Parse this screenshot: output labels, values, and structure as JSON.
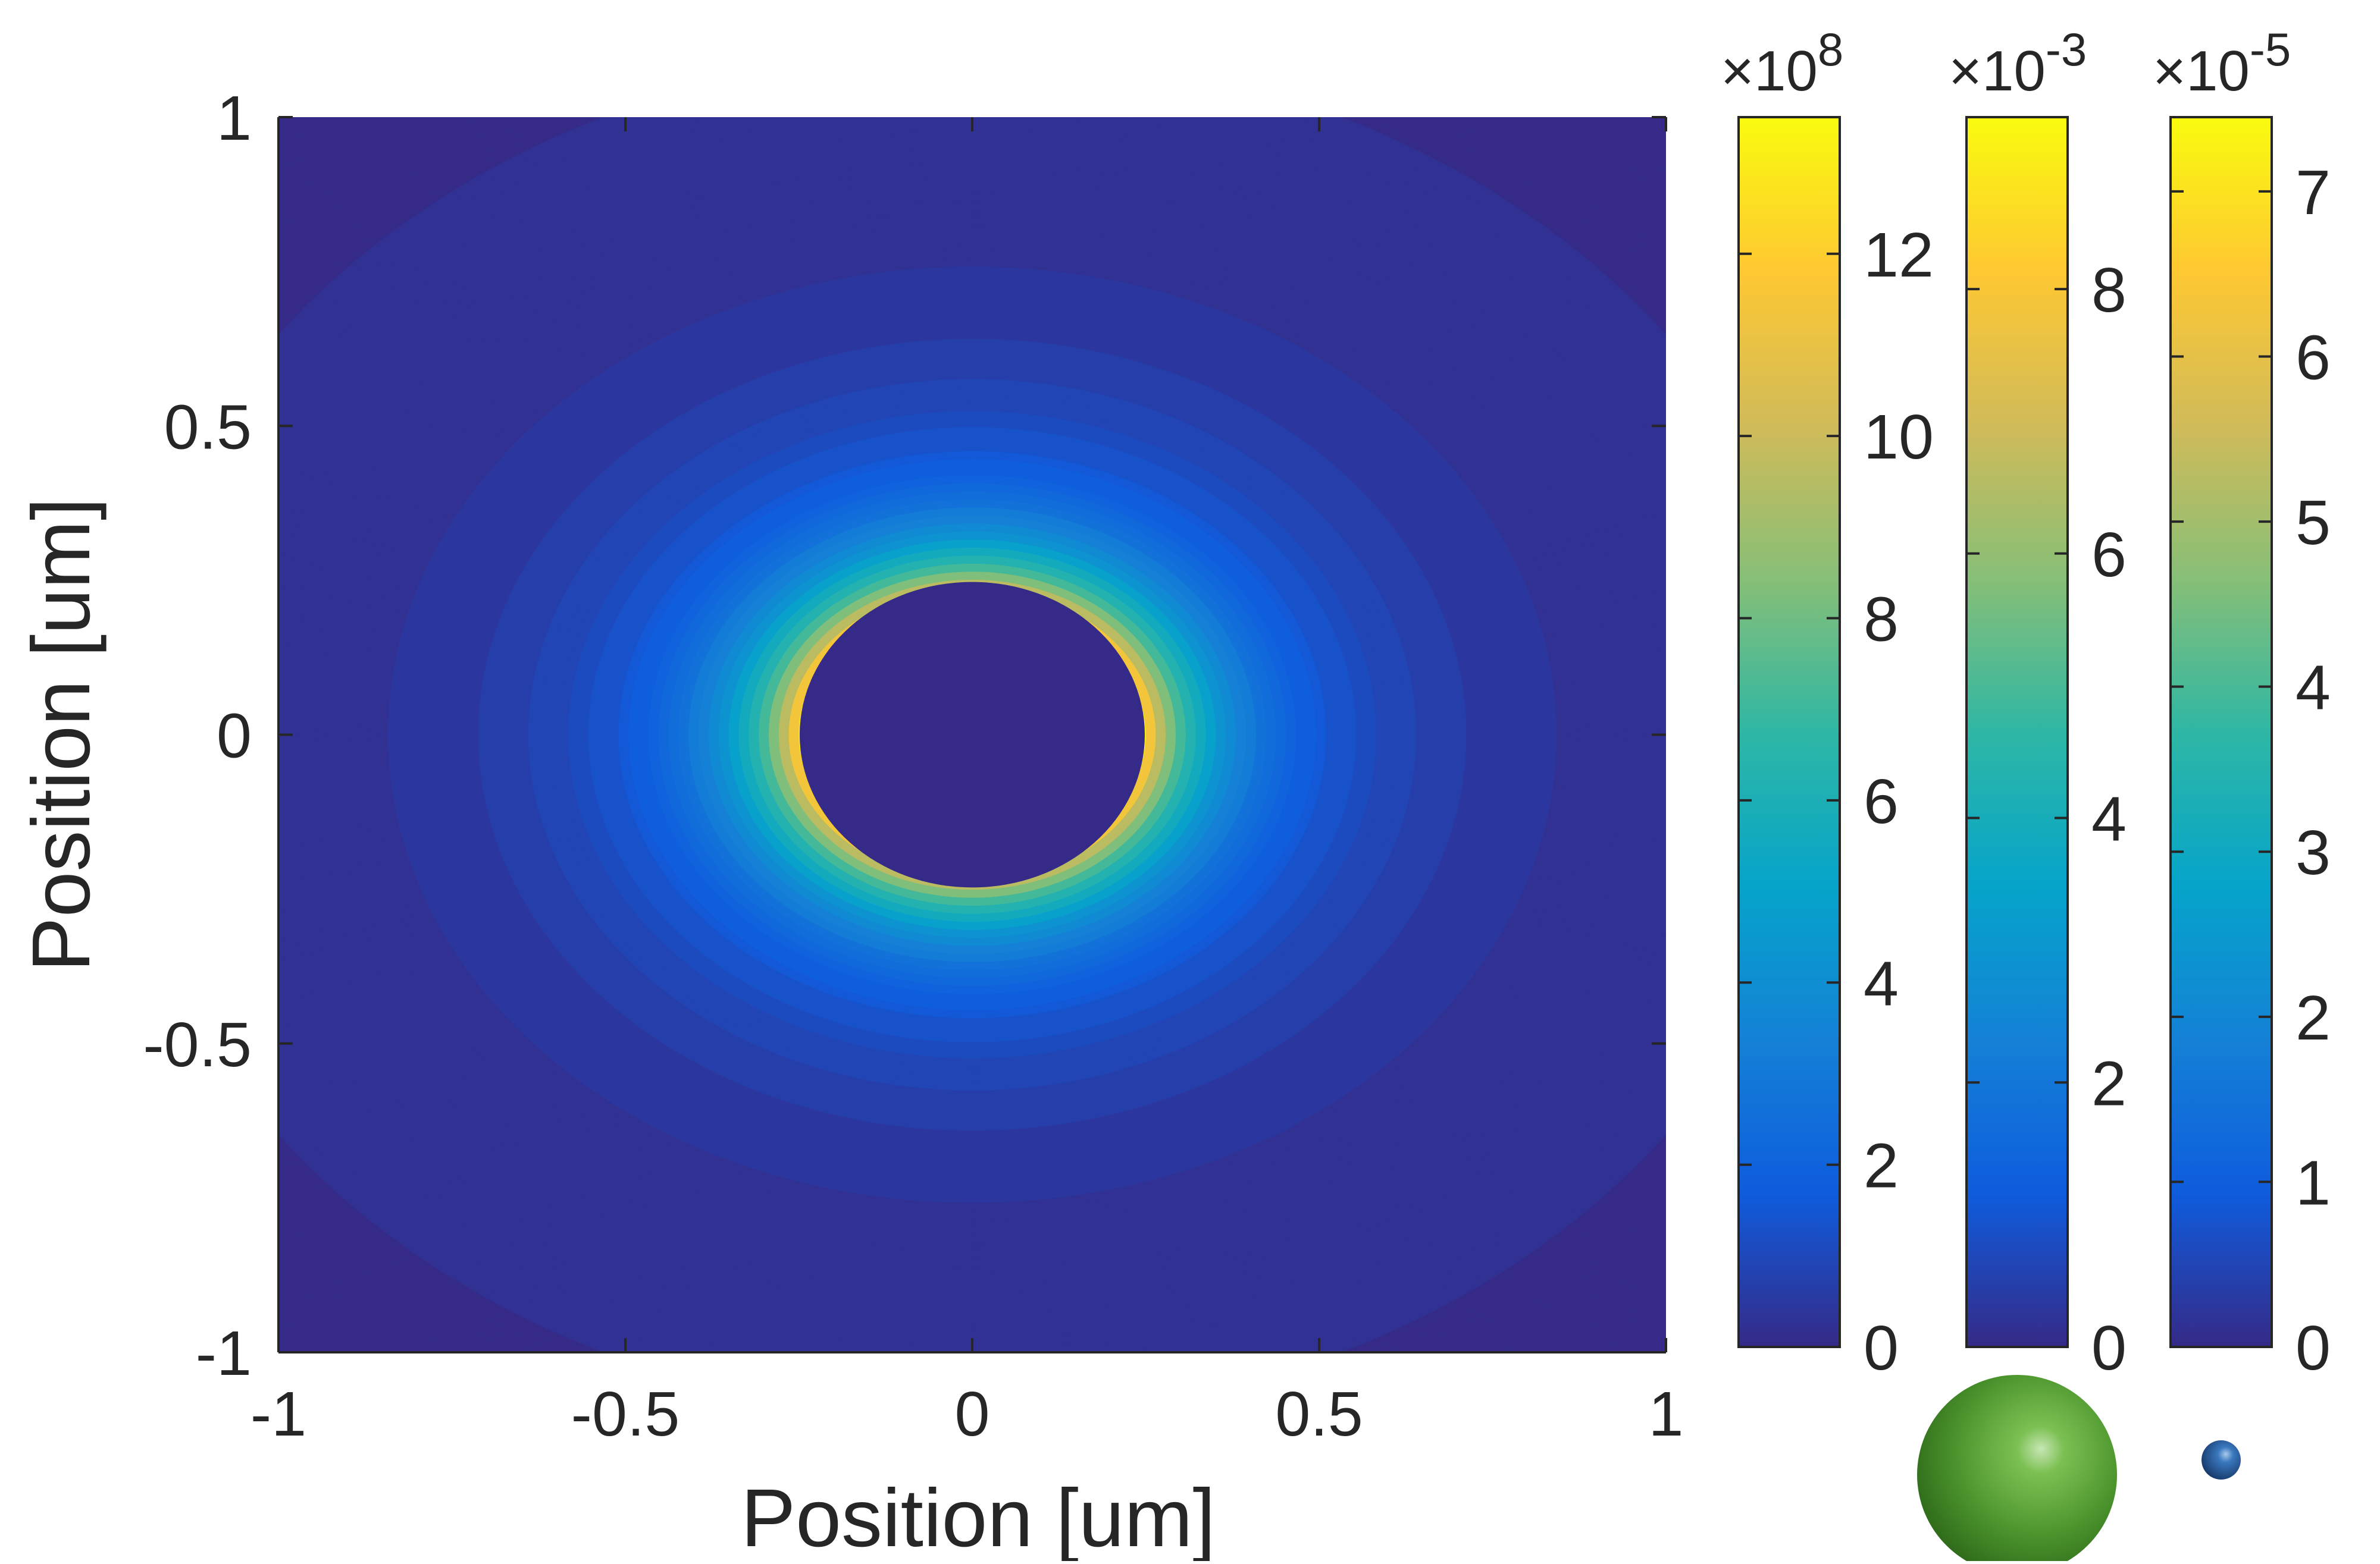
{
  "chart_data": {
    "type": "heatmap",
    "title": "",
    "xlabel": "Position [um]",
    "ylabel": "Position [um]",
    "xlim": [
      -1,
      1
    ],
    "ylim": [
      -1,
      1
    ],
    "x_ticks": [
      "-1",
      "-0.5",
      "0",
      "0.5",
      "1"
    ],
    "y_ticks": [
      "1",
      "0.5",
      "0",
      "-0.5",
      "-1"
    ],
    "x_tick_values": [
      -1,
      -0.5,
      0,
      0.5,
      1
    ],
    "y_tick_values": [
      1,
      0.5,
      0,
      -0.5,
      -1
    ],
    "colormap": "parula",
    "colormap_stops": [
      "#352a87",
      "#0f5cdd",
      "#1481d6",
      "#06a4ca",
      "#2eb7a4",
      "#87bf77",
      "#d1bb59",
      "#fec832",
      "#f9fb0e"
    ],
    "particle": {
      "center": [
        0,
        0
      ],
      "radius": 0.25,
      "inside_value": 0
    },
    "field_peak_at_surface": true,
    "field": {
      "description_free": false,
      "x_semi_axis_scale": 1.0,
      "y_semi_axis_scale": 0.9
    },
    "grid": false,
    "colorbars": [
      {
        "exponent_label": "×10",
        "exponent": "8",
        "range": [
          0,
          13.5
        ],
        "ticks": [
          "0",
          "2",
          "4",
          "6",
          "8",
          "10",
          "12"
        ],
        "tick_values": [
          0,
          2,
          4,
          6,
          8,
          10,
          12
        ]
      },
      {
        "exponent_label": "×10",
        "exponent": "-3",
        "range": [
          0,
          9.3
        ],
        "ticks": [
          "0",
          "2",
          "4",
          "6",
          "8"
        ],
        "tick_values": [
          0,
          2,
          4,
          6,
          8
        ]
      },
      {
        "exponent_label": "×10",
        "exponent": "-5",
        "range": [
          0,
          7.45
        ],
        "ticks": [
          "0",
          "1",
          "2",
          "3",
          "4",
          "5",
          "6",
          "7"
        ],
        "tick_values": [
          0,
          1,
          2,
          3,
          4,
          5,
          6,
          7
        ]
      }
    ],
    "legend_spheres": [
      {
        "name": "large-green-sphere",
        "color": "#5aa83a",
        "relative_size": "large"
      },
      {
        "name": "small-blue-sphere",
        "color": "#2f6db0",
        "relative_size": "small"
      }
    ]
  }
}
